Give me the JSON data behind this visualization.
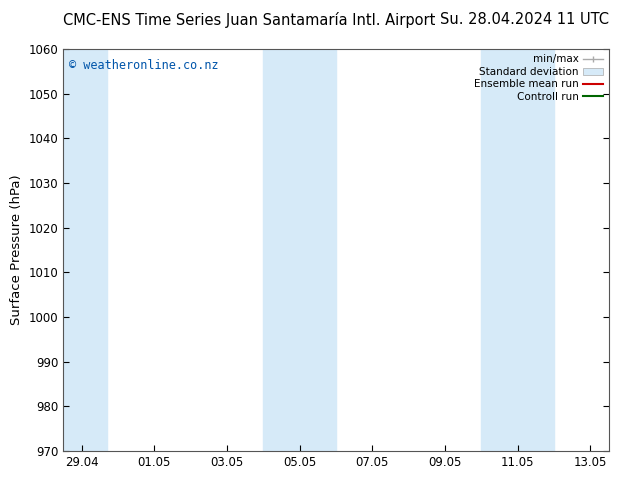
{
  "title_left": "CMC-ENS Time Series Juan Santamaría Intl. Airport",
  "title_right": "Su. 28.04.2024 11 UTC",
  "ylabel": "Surface Pressure (hPa)",
  "ylim": [
    970,
    1060
  ],
  "yticks": [
    970,
    980,
    990,
    1000,
    1010,
    1020,
    1030,
    1040,
    1050,
    1060
  ],
  "xlim_start": 0,
  "xlim_end": 15,
  "xtick_labels": [
    "29.04",
    "01.05",
    "03.05",
    "05.05",
    "07.05",
    "09.05",
    "11.05",
    "13.05"
  ],
  "xtick_positions": [
    0.5,
    2.5,
    4.5,
    6.5,
    8.5,
    10.5,
    12.5,
    14.5
  ],
  "shaded_bands": [
    {
      "x_start": 0,
      "x_end": 1.2,
      "color": "#d6eaf8"
    },
    {
      "x_start": 5.5,
      "x_end": 7.5,
      "color": "#d6eaf8"
    },
    {
      "x_start": 11.5,
      "x_end": 13.5,
      "color": "#d6eaf8"
    }
  ],
  "watermark_text": "© weatheronline.co.nz",
  "watermark_color": "#0055aa",
  "background_color": "#ffffff",
  "title_fontsize": 10.5,
  "tick_fontsize": 8.5,
  "ylabel_fontsize": 9.5,
  "legend_fontsize": 7.5,
  "spine_color": "#555555"
}
